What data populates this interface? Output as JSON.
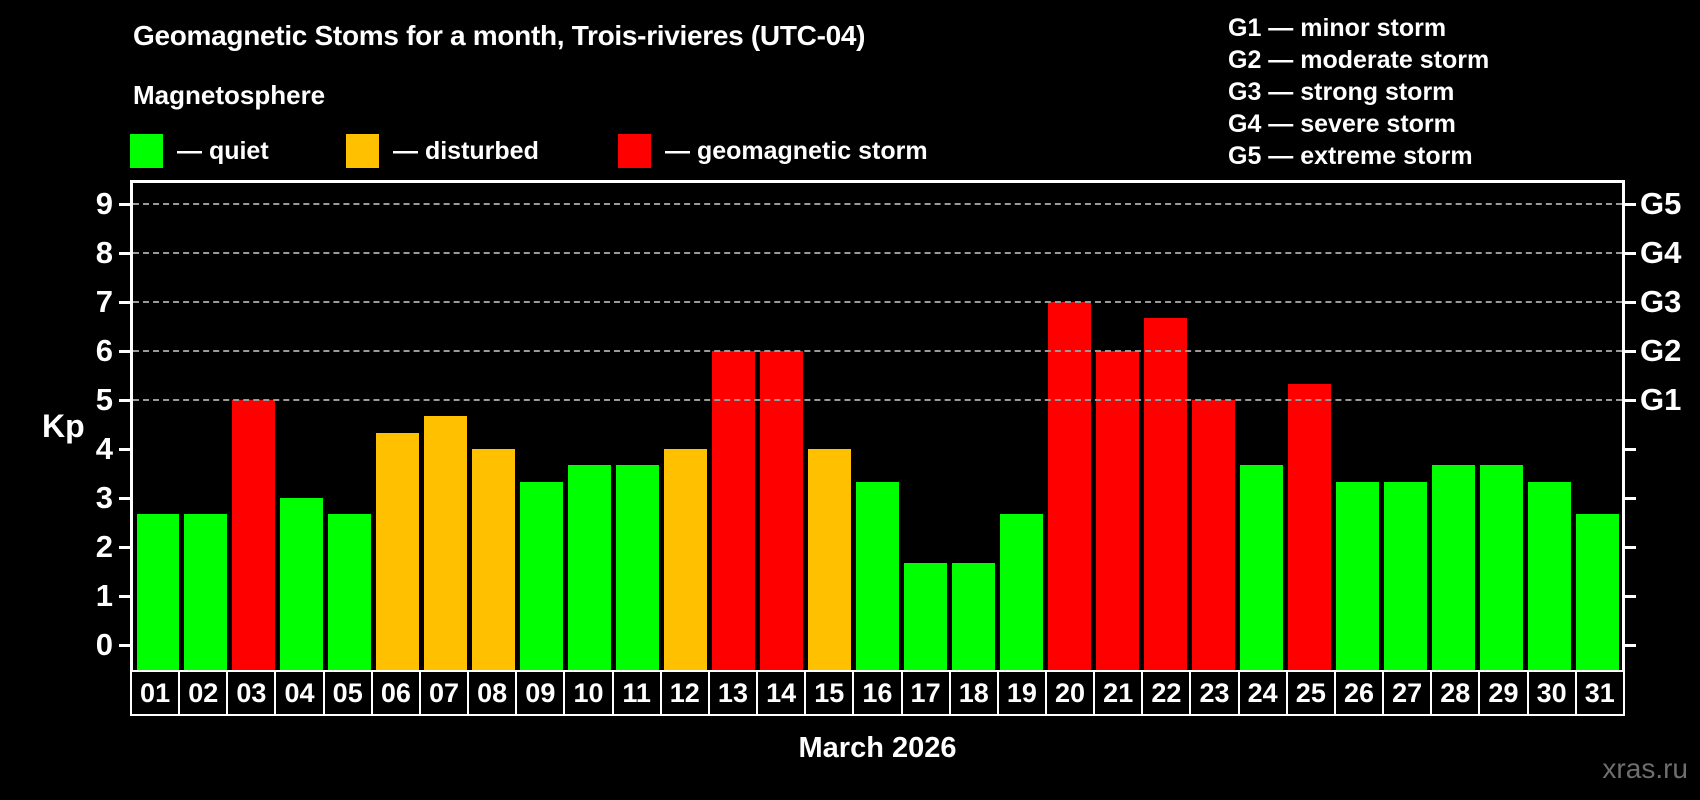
{
  "header": {
    "title": "Geomagnetic Stoms for a month, Trois-rivieres (UTC-04)",
    "subtitle": "Magnetosphere"
  },
  "legend": {
    "items": [
      {
        "name": "quiet",
        "label": "— quiet",
        "color": "#00ff00"
      },
      {
        "name": "disturbed",
        "label": "— disturbed",
        "color": "#ffc000"
      },
      {
        "name": "storm",
        "label": "— geomagnetic storm",
        "color": "#ff0000"
      }
    ]
  },
  "g_scale_legend": {
    "items": [
      "G1 — minor storm",
      "G2 — moderate storm",
      "G3 — strong storm",
      "G4 — severe storm",
      "G5 — extreme storm"
    ]
  },
  "axes": {
    "y_left_label": "Kp",
    "y_left_ticks": [
      0,
      1,
      2,
      3,
      4,
      5,
      6,
      7,
      8,
      9
    ],
    "y_right_ticks": [
      0,
      1,
      2,
      3,
      4,
      5,
      6,
      7,
      8,
      9
    ],
    "y_right_labels": [
      {
        "kp": 5,
        "label": "G1"
      },
      {
        "kp": 6,
        "label": "G2"
      },
      {
        "kp": 7,
        "label": "G3"
      },
      {
        "kp": 8,
        "label": "G4"
      },
      {
        "kp": 9,
        "label": "G5"
      }
    ],
    "x_axis_title": "March 2026"
  },
  "watermark": "xras.ru",
  "colors": {
    "quiet": "#00ff00",
    "disturbed": "#ffc000",
    "storm": "#ff0000",
    "background": "#000000",
    "grid": "#9a9a9a",
    "axis": "#ffffff",
    "watermark": "#6e6e6e"
  },
  "chart_data": {
    "type": "bar",
    "title": "Geomagnetic Stoms for a month, Trois-rivieres (UTC-04)",
    "xlabel": "March 2026",
    "ylabel": "Kp",
    "ylim": [
      0,
      9
    ],
    "grid": "dashed horizontal at Kp 5-9 (G1-G5 levels)",
    "legend_position": "top-left and top-right",
    "gridlines_at": [
      5,
      6,
      7,
      8,
      9
    ],
    "categories": [
      "01",
      "02",
      "03",
      "04",
      "05",
      "06",
      "07",
      "08",
      "09",
      "10",
      "11",
      "12",
      "13",
      "14",
      "15",
      "16",
      "17",
      "18",
      "19",
      "20",
      "21",
      "22",
      "23",
      "24",
      "25",
      "26",
      "27",
      "28",
      "29",
      "30",
      "31"
    ],
    "values": [
      2.67,
      2.67,
      5.0,
      3.0,
      2.67,
      4.33,
      4.67,
      4.0,
      3.33,
      3.67,
      3.67,
      4.0,
      6.0,
      6.0,
      4.0,
      3.33,
      1.67,
      1.67,
      2.67,
      7.0,
      6.0,
      6.67,
      5.0,
      3.67,
      5.33,
      3.33,
      3.33,
      3.67,
      3.67,
      3.33,
      2.67
    ],
    "statuses": [
      "quiet",
      "quiet",
      "storm",
      "quiet",
      "quiet",
      "disturbed",
      "disturbed",
      "disturbed",
      "quiet",
      "quiet",
      "quiet",
      "disturbed",
      "storm",
      "storm",
      "disturbed",
      "quiet",
      "quiet",
      "quiet",
      "quiet",
      "storm",
      "storm",
      "storm",
      "storm",
      "quiet",
      "storm",
      "quiet",
      "quiet",
      "quiet",
      "quiet",
      "quiet",
      "quiet"
    ]
  }
}
